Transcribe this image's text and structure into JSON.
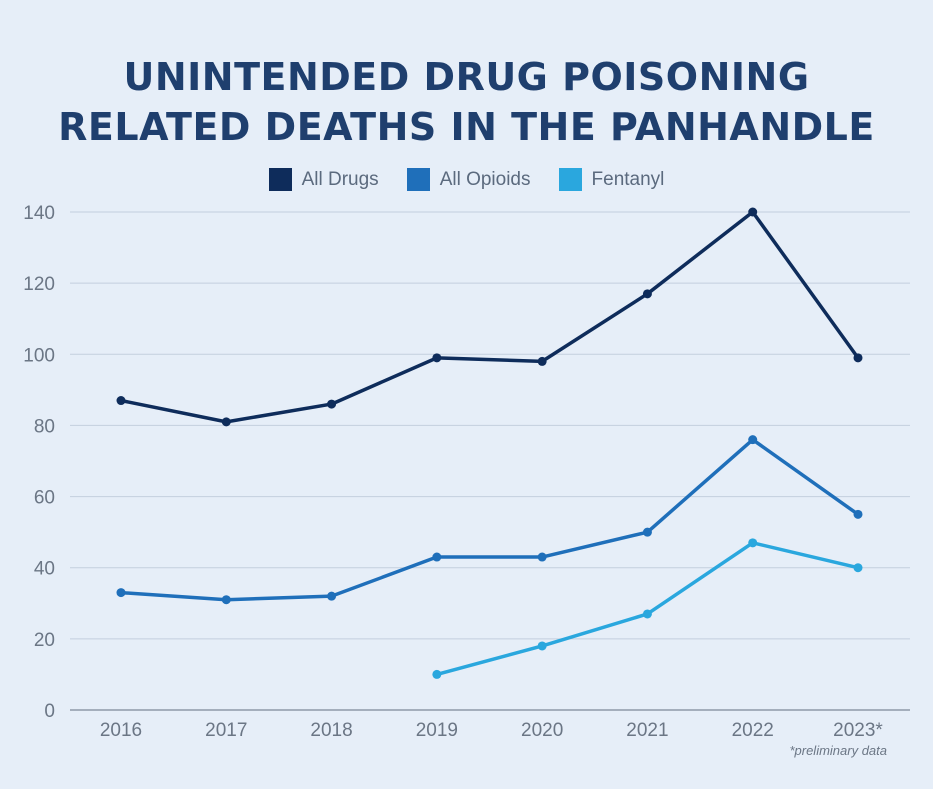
{
  "chart_data": {
    "type": "line",
    "title_lines": [
      "UNINTENDED DRUG POISONING",
      "RELATED DEATHS IN THE PANHANDLE"
    ],
    "categories": [
      "2016",
      "2017",
      "2018",
      "2019",
      "2020",
      "2021",
      "2022",
      "2023*"
    ],
    "series": [
      {
        "name": "All Drugs",
        "color": "#0e2c5b",
        "values": [
          87,
          81,
          86,
          99,
          98,
          117,
          140,
          99
        ]
      },
      {
        "name": "All Opioids",
        "color": "#1f6fba",
        "values": [
          33,
          31,
          32,
          43,
          43,
          50,
          76,
          55
        ]
      },
      {
        "name": "Fentanyl",
        "color": "#2aa7de",
        "values": [
          null,
          null,
          null,
          10,
          18,
          27,
          47,
          40
        ]
      }
    ],
    "y_ticks": [
      "0",
      "20",
      "40",
      "60",
      "80",
      "100",
      "120",
      "140"
    ],
    "ylim": [
      0,
      140
    ],
    "grid": true,
    "legend_position": "top-center",
    "note": "*preliminary data"
  }
}
